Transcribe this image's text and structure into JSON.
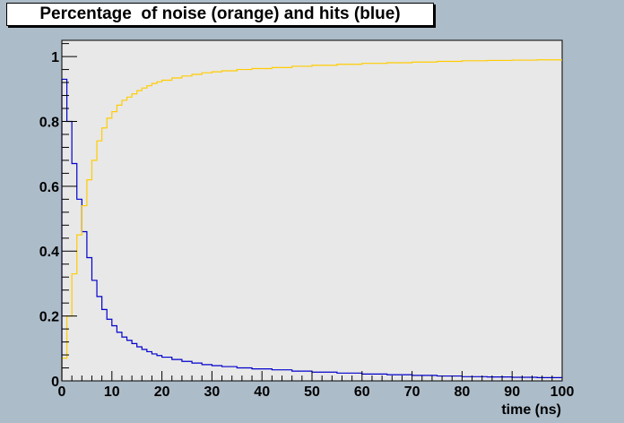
{
  "chart_data": {
    "type": "line",
    "step": true,
    "title": "Percentage  of noise (orange) and hits (blue)",
    "xlabel": "time (ns)",
    "ylabel": "",
    "xlim": [
      0,
      100
    ],
    "ylim": [
      0,
      1.05
    ],
    "grid": false,
    "x_ticks": [
      {
        "value": 0,
        "label": "0"
      },
      {
        "value": 10,
        "label": "10"
      },
      {
        "value": 20,
        "label": "20"
      },
      {
        "value": 30,
        "label": "30"
      },
      {
        "value": 40,
        "label": "40"
      },
      {
        "value": 50,
        "label": "50"
      },
      {
        "value": 60,
        "label": "60"
      },
      {
        "value": 70,
        "label": "70"
      },
      {
        "value": 80,
        "label": "80"
      },
      {
        "value": 90,
        "label": "90"
      },
      {
        "value": 100,
        "label": "100"
      }
    ],
    "y_ticks": [
      {
        "value": 0,
        "label": "0"
      },
      {
        "value": 0.2,
        "label": "0.2"
      },
      {
        "value": 0.4,
        "label": "0.4"
      },
      {
        "value": 0.6,
        "label": "0.6"
      },
      {
        "value": 0.8,
        "label": "0.8"
      },
      {
        "value": 1,
        "label": "1"
      }
    ],
    "series": [
      {
        "color": "#0000cc",
        "values": [
          [
            0,
            0.93
          ],
          [
            1,
            0.8
          ],
          [
            2,
            0.67
          ],
          [
            3,
            0.56
          ],
          [
            4,
            0.46
          ],
          [
            5,
            0.38
          ],
          [
            6,
            0.31
          ],
          [
            7,
            0.26
          ],
          [
            8,
            0.22
          ],
          [
            9,
            0.19
          ],
          [
            10,
            0.17
          ],
          [
            11,
            0.15
          ],
          [
            12,
            0.135
          ],
          [
            13,
            0.125
          ],
          [
            14,
            0.115
          ],
          [
            15,
            0.105
          ],
          [
            16,
            0.097
          ],
          [
            17,
            0.09
          ],
          [
            18,
            0.083
          ],
          [
            19,
            0.078
          ],
          [
            20,
            0.073
          ],
          [
            22,
            0.066
          ],
          [
            24,
            0.06
          ],
          [
            26,
            0.055
          ],
          [
            28,
            0.05
          ],
          [
            30,
            0.047
          ],
          [
            32,
            0.044
          ],
          [
            35,
            0.04
          ],
          [
            38,
            0.037
          ],
          [
            42,
            0.034
          ],
          [
            46,
            0.03
          ],
          [
            50,
            0.027
          ],
          [
            55,
            0.024
          ],
          [
            60,
            0.021
          ],
          [
            65,
            0.019
          ],
          [
            70,
            0.017
          ],
          [
            75,
            0.015
          ],
          [
            80,
            0.013
          ],
          [
            85,
            0.012
          ],
          [
            90,
            0.011
          ],
          [
            95,
            0.01
          ],
          [
            100,
            0.01
          ]
        ]
      },
      {
        "color": "#ffcc00",
        "values": [
          [
            0,
            0.07
          ],
          [
            1,
            0.2
          ],
          [
            2,
            0.33
          ],
          [
            3,
            0.45
          ],
          [
            4,
            0.54
          ],
          [
            5,
            0.62
          ],
          [
            6,
            0.68
          ],
          [
            7,
            0.74
          ],
          [
            8,
            0.78
          ],
          [
            9,
            0.81
          ],
          [
            10,
            0.83
          ],
          [
            11,
            0.85
          ],
          [
            12,
            0.865
          ],
          [
            13,
            0.875
          ],
          [
            14,
            0.885
          ],
          [
            15,
            0.895
          ],
          [
            16,
            0.903
          ],
          [
            17,
            0.91
          ],
          [
            18,
            0.917
          ],
          [
            19,
            0.922
          ],
          [
            20,
            0.927
          ],
          [
            22,
            0.934
          ],
          [
            24,
            0.94
          ],
          [
            26,
            0.945
          ],
          [
            28,
            0.95
          ],
          [
            30,
            0.953
          ],
          [
            32,
            0.956
          ],
          [
            35,
            0.96
          ],
          [
            38,
            0.963
          ],
          [
            42,
            0.966
          ],
          [
            46,
            0.97
          ],
          [
            50,
            0.973
          ],
          [
            55,
            0.976
          ],
          [
            60,
            0.979
          ],
          [
            65,
            0.981
          ],
          [
            70,
            0.983
          ],
          [
            75,
            0.985
          ],
          [
            80,
            0.987
          ],
          [
            85,
            0.988
          ],
          [
            90,
            0.989
          ],
          [
            95,
            0.99
          ],
          [
            100,
            0.99
          ]
        ]
      }
    ],
    "colors": {
      "canvas": "#adbcc9",
      "frame": "#e8e8e8"
    }
  }
}
